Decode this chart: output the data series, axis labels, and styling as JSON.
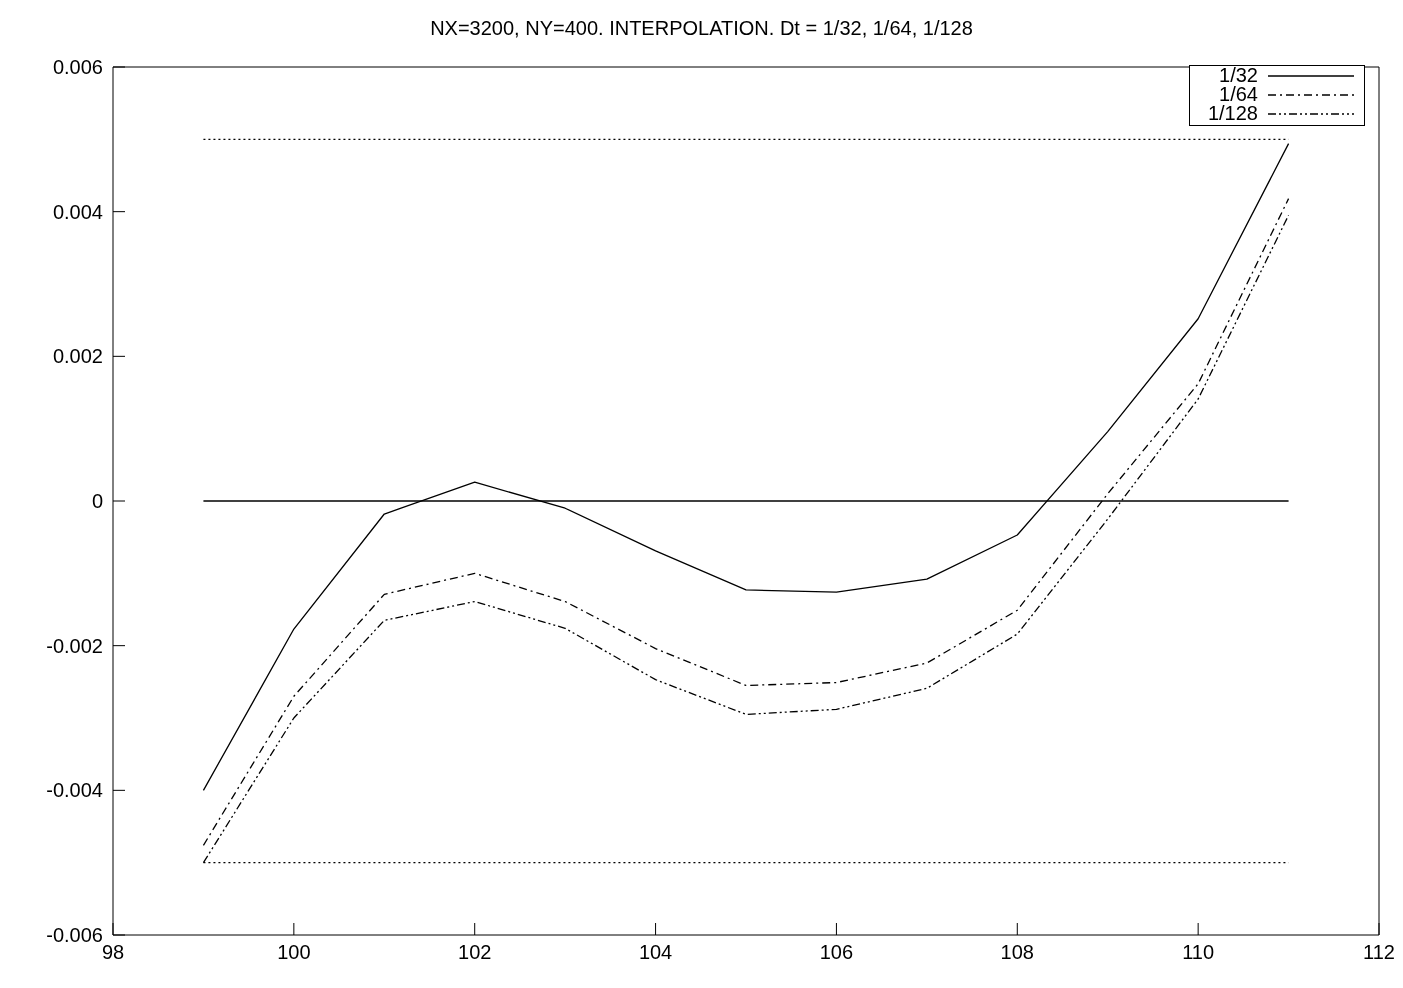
{
  "chart_data": {
    "type": "line",
    "title": "NX=3200, NY=400. INTERPOLATION. Dt = 1/32, 1/64, 1/128",
    "x": [
      99,
      100,
      101,
      102,
      103,
      104,
      105,
      106,
      107,
      108,
      109,
      110,
      111
    ],
    "series": [
      {
        "name": "1/32",
        "color": "#000000",
        "line_style": "solid",
        "values": [
          -0.004,
          -0.00177,
          -0.00018,
          0.00026,
          -0.0001,
          -0.00069,
          -0.00123,
          -0.00126,
          -0.00108,
          -0.00047,
          0.00096,
          0.00252,
          0.00494
        ]
      },
      {
        "name": "1/64",
        "color": "#000000",
        "line_style": "dashdot",
        "values": [
          -0.00476,
          -0.0027,
          -0.00129,
          -0.001,
          -0.00139,
          -0.00204,
          -0.00255,
          -0.00251,
          -0.00224,
          -0.00151,
          0.0001,
          0.00162,
          0.00418
        ]
      },
      {
        "name": "1/128",
        "color": "#000000",
        "line_style": "dashdotdot",
        "values": [
          -0.005,
          -0.003,
          -0.00165,
          -0.00139,
          -0.00176,
          -0.00247,
          -0.00295,
          -0.00288,
          -0.00259,
          -0.00184,
          -0.00025,
          0.00141,
          0.00395
        ]
      },
      {
        "color": "#000000",
        "line_style": "dotted",
        "values": [
          0.005,
          0.005,
          0.005,
          0.005,
          0.005,
          0.005,
          0.005,
          0.005,
          0.005,
          0.005,
          0.005,
          0.005,
          0.005
        ]
      },
      {
        "color": "#000000",
        "line_style": "solid",
        "values": [
          0,
          0,
          0,
          0,
          0,
          0,
          0,
          0,
          0,
          0,
          0,
          0,
          0
        ]
      },
      {
        "color": "#000000",
        "line_style": "dotted",
        "values": [
          -0.005,
          -0.005,
          -0.005,
          -0.005,
          -0.005,
          -0.005,
          -0.005,
          -0.005,
          -0.005,
          -0.005,
          -0.005,
          -0.005,
          -0.005
        ]
      }
    ],
    "xlim": [
      98,
      112
    ],
    "xticks": [
      98,
      100,
      102,
      104,
      106,
      108,
      110,
      112
    ],
    "ylim": [
      -0.006,
      0.006
    ],
    "yticks": [
      -0.006,
      -0.004,
      -0.002,
      0,
      0.002,
      0.004,
      0.006
    ],
    "grid": false,
    "legend": "top right",
    "marker": "none"
  }
}
